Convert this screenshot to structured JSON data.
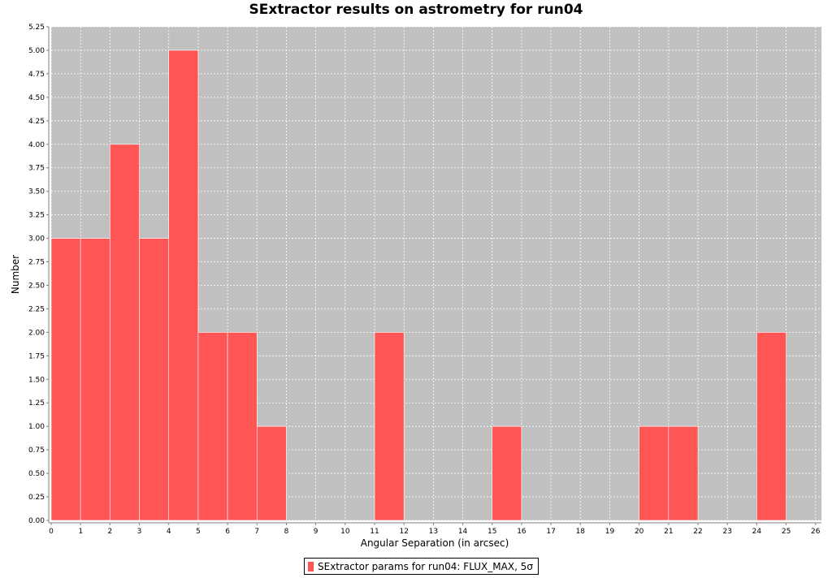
{
  "colors": {
    "plot_background": "#c0c0c0",
    "bar_fill": "#ff5555",
    "grid": "#ffffff",
    "axis": "#808080"
  },
  "chart_data": {
    "type": "bar",
    "title": "SExtractor results on astrometry for run04",
    "xlabel": "Angular Separation (in arcsec)",
    "ylabel": "Number",
    "xlim": [
      0,
      26.2
    ],
    "ylim": [
      0,
      5.25
    ],
    "x_ticks": [
      0,
      1,
      2,
      3,
      4,
      5,
      6,
      7,
      8,
      9,
      10,
      11,
      12,
      13,
      14,
      15,
      16,
      17,
      18,
      19,
      20,
      21,
      22,
      23,
      24,
      25,
      26
    ],
    "y_ticks": [
      "0.00",
      "0.25",
      "0.50",
      "0.75",
      "1.00",
      "1.25",
      "1.50",
      "1.75",
      "2.00",
      "2.25",
      "2.50",
      "2.75",
      "3.00",
      "3.25",
      "3.50",
      "3.75",
      "4.00",
      "4.25",
      "4.50",
      "4.75",
      "5.00",
      "5.25"
    ],
    "grid": true,
    "legend": "bottom",
    "series": [
      {
        "name": "SExtractor params for run04: FLUX_MAX, 5σ",
        "bins": [
          {
            "x0": 0,
            "x1": 1,
            "value": 3
          },
          {
            "x0": 1,
            "x1": 2,
            "value": 3
          },
          {
            "x0": 2,
            "x1": 3,
            "value": 4
          },
          {
            "x0": 3,
            "x1": 4,
            "value": 3
          },
          {
            "x0": 4,
            "x1": 5,
            "value": 5
          },
          {
            "x0": 5,
            "x1": 6,
            "value": 2
          },
          {
            "x0": 6,
            "x1": 7,
            "value": 2
          },
          {
            "x0": 7,
            "x1": 8,
            "value": 1
          },
          {
            "x0": 11,
            "x1": 12,
            "value": 2
          },
          {
            "x0": 15,
            "x1": 16,
            "value": 1
          },
          {
            "x0": 20,
            "x1": 21,
            "value": 1
          },
          {
            "x0": 21,
            "x1": 22,
            "value": 1
          },
          {
            "x0": 24,
            "x1": 25,
            "value": 2
          }
        ]
      }
    ]
  }
}
